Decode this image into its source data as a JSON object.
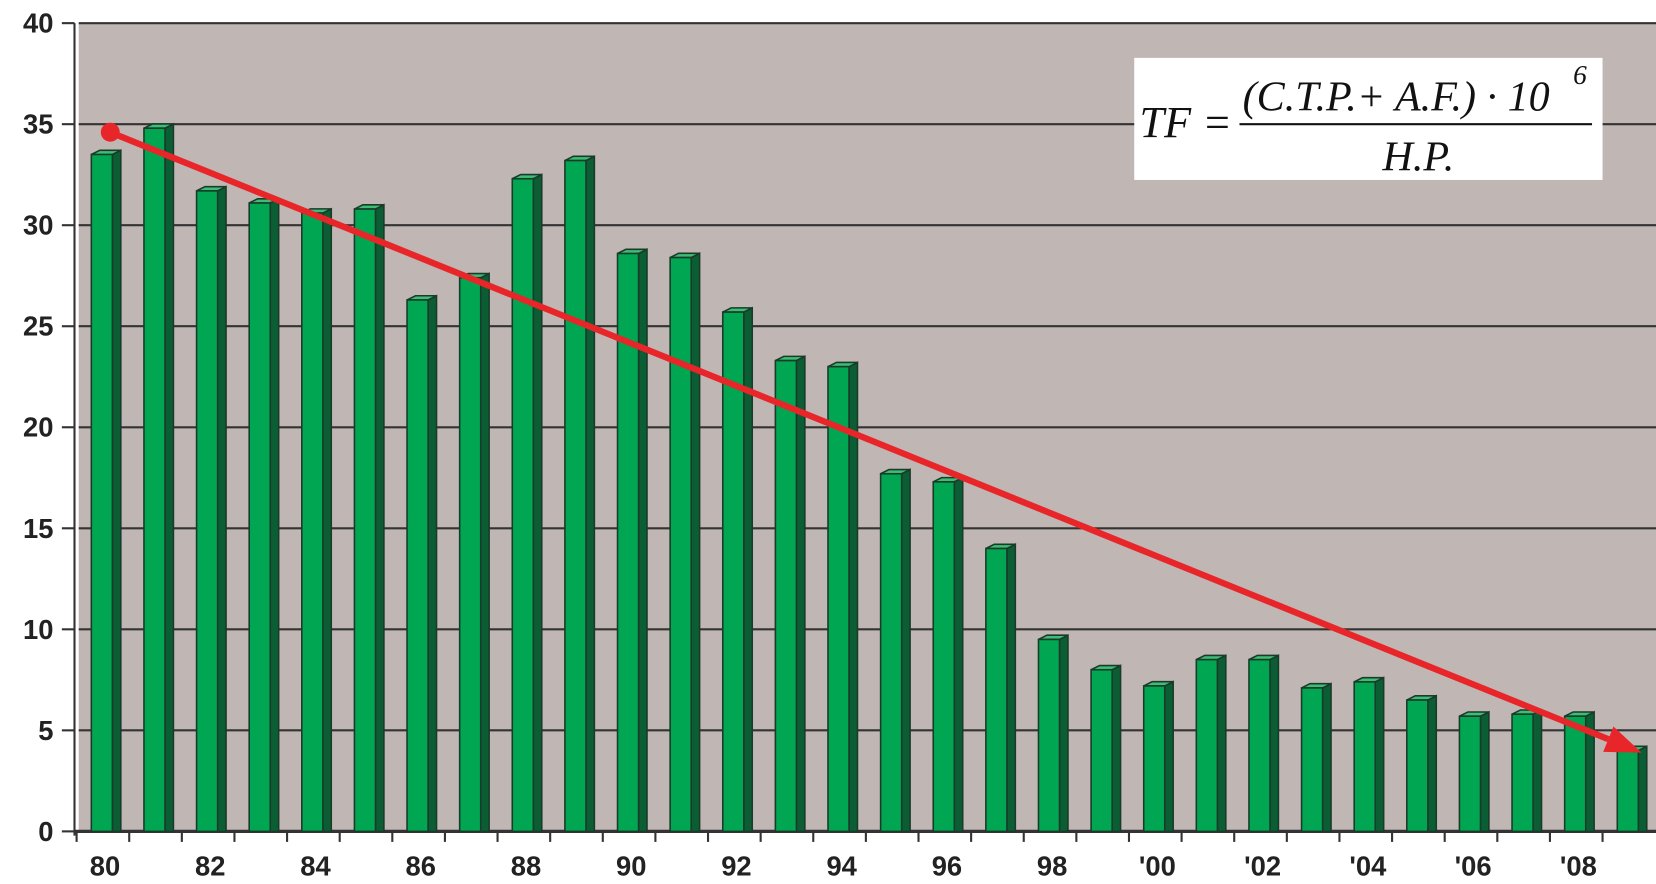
{
  "chart_data": {
    "type": "bar",
    "categories": [
      "80",
      null,
      "82",
      null,
      "84",
      null,
      "86",
      null,
      "88",
      null,
      "90",
      null,
      "92",
      null,
      "94",
      null,
      "96",
      null,
      "98",
      null,
      "'00",
      null,
      "'02",
      null,
      "'04",
      null,
      "'06",
      null,
      "'08",
      null
    ],
    "values": [
      33.5,
      34.8,
      31.7,
      31.1,
      30.6,
      30.8,
      26.3,
      27.4,
      32.3,
      33.2,
      28.6,
      28.4,
      25.7,
      23.3,
      23.0,
      17.7,
      17.3,
      14.0,
      9.5,
      8.0,
      7.2,
      8.5,
      8.5,
      7.1,
      7.4,
      6.5,
      5.7,
      5.8,
      5.7,
      4.0
    ],
    "color": "#00a651",
    "ylim": [
      0,
      40
    ],
    "yticks": [
      0,
      5,
      10,
      15,
      20,
      25,
      30,
      35,
      40
    ],
    "grid": true,
    "trend": {
      "start": 34.6,
      "end": 3.9,
      "color": "#e8262a"
    },
    "formula": {
      "lhs": "TF =",
      "numerator": "(C.T.P.+ A.F.) · 10",
      "exponent": "6",
      "denominator": "H.P."
    }
  }
}
